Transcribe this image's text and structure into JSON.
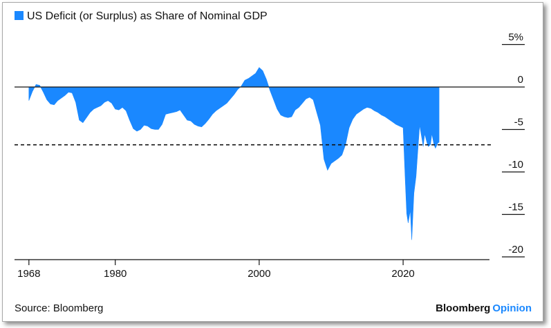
{
  "chart_data": {
    "type": "area",
    "title": "US Deficit (or Surplus) as Share of Nominal GDP",
    "legend": [
      {
        "label": "US Deficit (or Surplus) as Share of Nominal GDP",
        "color": "#1a88ff"
      }
    ],
    "xlabel": "",
    "ylabel": "",
    "xlim": [
      1966,
      2032
    ],
    "ylim": [
      -20,
      5
    ],
    "x_ticks": [
      {
        "value": 1968,
        "label": "1968"
      },
      {
        "value": 1980,
        "label": "1980"
      },
      {
        "value": 2000,
        "label": "2000"
      },
      {
        "value": 2020,
        "label": "2020"
      }
    ],
    "y_ticks": [
      {
        "value": 5,
        "label": "5%"
      },
      {
        "value": 0,
        "label": "0"
      },
      {
        "value": -5,
        "label": "-5"
      },
      {
        "value": -10,
        "label": "-10"
      },
      {
        "value": -15,
        "label": "-15"
      },
      {
        "value": -20,
        "label": "-20"
      }
    ],
    "reference_lines": [
      {
        "value": 0,
        "style": "solid"
      },
      {
        "value": -6.8,
        "style": "dashed"
      }
    ],
    "series": [
      {
        "name": "US Deficit (or Surplus) as Share of Nominal GDP",
        "color": "#1a88ff",
        "x": [
          1968.0,
          1968.5,
          1969.0,
          1969.5,
          1970.0,
          1970.5,
          1971.0,
          1971.5,
          1972.0,
          1972.5,
          1973.0,
          1973.5,
          1974.0,
          1974.5,
          1975.0,
          1975.5,
          1976.0,
          1976.5,
          1977.0,
          1977.5,
          1978.0,
          1978.5,
          1979.0,
          1979.5,
          1980.0,
          1980.5,
          1981.0,
          1981.5,
          1982.0,
          1982.5,
          1983.0,
          1983.5,
          1984.0,
          1984.5,
          1985.0,
          1985.5,
          1986.0,
          1986.5,
          1987.0,
          1987.5,
          1988.0,
          1988.5,
          1989.0,
          1989.5,
          1990.0,
          1990.5,
          1991.0,
          1991.5,
          1992.0,
          1992.5,
          1993.0,
          1993.5,
          1994.0,
          1994.5,
          1995.0,
          1995.5,
          1996.0,
          1996.5,
          1997.0,
          1997.5,
          1998.0,
          1998.5,
          1999.0,
          1999.5,
          2000.0,
          2000.5,
          2001.0,
          2001.5,
          2002.0,
          2002.5,
          2003.0,
          2003.5,
          2004.0,
          2004.5,
          2005.0,
          2005.5,
          2006.0,
          2006.5,
          2007.0,
          2007.5,
          2008.0,
          2008.5,
          2009.0,
          2009.5,
          2010.0,
          2010.5,
          2011.0,
          2011.5,
          2012.0,
          2012.5,
          2013.0,
          2013.5,
          2014.0,
          2014.5,
          2015.0,
          2015.5,
          2016.0,
          2016.5,
          2017.0,
          2017.5,
          2018.0,
          2018.5,
          2019.0,
          2019.5,
          2020.0,
          2020.3,
          2020.5,
          2020.7,
          2021.0,
          2021.2,
          2021.5,
          2021.8,
          2022.0,
          2022.3,
          2022.5,
          2022.8,
          2023.0,
          2023.3,
          2023.5,
          2023.8,
          2024.0,
          2024.3,
          2024.5,
          2024.8,
          2025.0
        ],
        "values": [
          -1.6,
          -0.5,
          0.3,
          0.2,
          -0.6,
          -1.5,
          -2.0,
          -2.1,
          -1.6,
          -1.3,
          -1.0,
          -0.6,
          -0.7,
          -1.8,
          -3.9,
          -4.2,
          -3.6,
          -3.0,
          -2.6,
          -2.4,
          -2.2,
          -1.8,
          -1.6,
          -1.9,
          -2.6,
          -2.7,
          -2.4,
          -2.8,
          -3.9,
          -4.9,
          -5.2,
          -5.0,
          -4.5,
          -4.6,
          -4.9,
          -5.0,
          -5.0,
          -4.4,
          -3.2,
          -3.1,
          -3.0,
          -2.9,
          -2.7,
          -3.3,
          -3.9,
          -4.0,
          -4.4,
          -4.6,
          -4.7,
          -4.3,
          -3.8,
          -3.2,
          -2.8,
          -2.5,
          -2.2,
          -1.9,
          -1.4,
          -0.9,
          -0.3,
          0.1,
          0.8,
          1.0,
          1.3,
          1.6,
          2.3,
          1.9,
          0.9,
          -0.4,
          -1.5,
          -2.6,
          -3.3,
          -3.5,
          -3.6,
          -3.5,
          -2.7,
          -2.4,
          -1.9,
          -1.4,
          -1.2,
          -1.5,
          -3.0,
          -4.5,
          -8.5,
          -9.8,
          -9.0,
          -8.7,
          -8.4,
          -8.0,
          -6.8,
          -4.8,
          -3.8,
          -3.2,
          -2.9,
          -2.6,
          -2.4,
          -2.5,
          -2.8,
          -3.0,
          -3.3,
          -3.5,
          -3.8,
          -4.1,
          -4.4,
          -4.6,
          -4.8,
          -11.0,
          -14.9,
          -16.0,
          -14.5,
          -18.0,
          -12.5,
          -10.5,
          -8.0,
          -4.5,
          -5.5,
          -7.0,
          -5.5,
          -6.5,
          -7.0,
          -6.8,
          -5.5,
          -6.8,
          -7.2,
          -6.6,
          -6.5
        ]
      }
    ]
  },
  "footer": {
    "source": "Source: Bloomberg",
    "brand_main": "Bloomberg",
    "brand_sub": "Opinion"
  }
}
